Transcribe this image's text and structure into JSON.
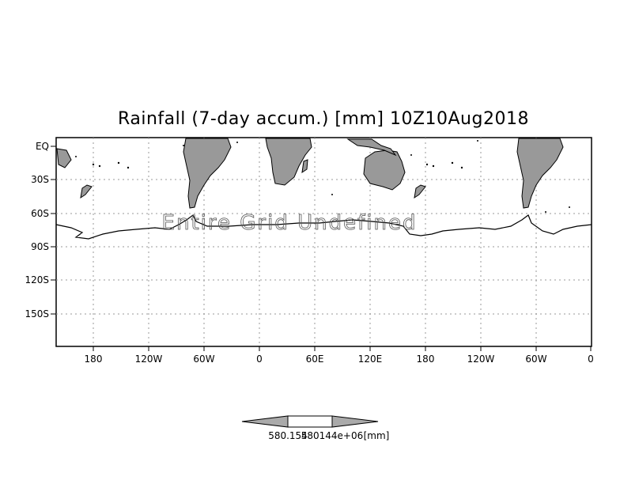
{
  "map": {
    "title": "Rainfall (7-day accum.) [mm] 10Z10Aug2018",
    "message": "Entire Grid Undefined",
    "y_ticks": [
      "EQ",
      "30S",
      "60S",
      "90S",
      "120S",
      "150S"
    ],
    "x_ticks": [
      "180",
      "120W",
      "60W",
      "0",
      "60E",
      "120E",
      "180",
      "120W",
      "60W",
      "0"
    ],
    "land_color": "#999999",
    "grid": "dotted"
  },
  "colorbar": {
    "label_left": "580.154",
    "label_right": "580144e+06",
    "unit": "[mm]",
    "fill_color": "#aaaaaa"
  }
}
